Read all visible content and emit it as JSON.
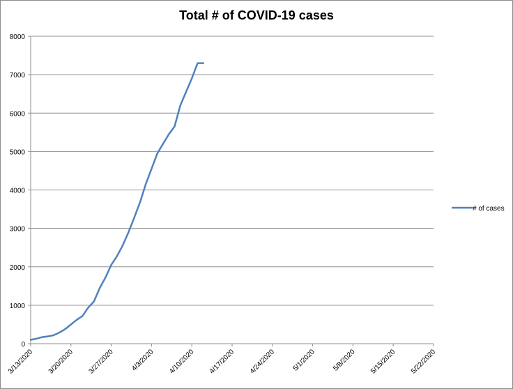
{
  "chart_data": {
    "type": "line",
    "title": "Total # of COVID-19 cases",
    "xlabel": "",
    "ylabel": "",
    "ylim": [
      0,
      8000
    ],
    "y_ticks": [
      0,
      1000,
      2000,
      3000,
      4000,
      5000,
      6000,
      7000,
      8000
    ],
    "x_ticks": [
      "3/13/2020",
      "3/20/2020",
      "3/27/2020",
      "4/3/2020",
      "4/10/2020",
      "4/17/2020",
      "4/24/2020",
      "5/1/2020",
      "5/8/2020",
      "5/15/2020",
      "5/22/2020"
    ],
    "xlim": [
      "3/13/2020",
      "5/22/2020"
    ],
    "grid": true,
    "legend_position": "right",
    "series": [
      {
        "name": "# of cases",
        "color": "#4f81bd",
        "x": [
          "3/13/2020",
          "3/14/2020",
          "3/15/2020",
          "3/16/2020",
          "3/17/2020",
          "3/18/2020",
          "3/19/2020",
          "3/20/2020",
          "3/21/2020",
          "3/22/2020",
          "3/23/2020",
          "3/24/2020",
          "3/25/2020",
          "3/26/2020",
          "3/27/2020",
          "3/28/2020",
          "3/29/2020",
          "3/30/2020",
          "3/31/2020",
          "4/1/2020",
          "4/2/2020",
          "4/3/2020",
          "4/4/2020",
          "4/5/2020",
          "4/6/2020",
          "4/7/2020",
          "4/8/2020",
          "4/9/2020",
          "4/10/2020",
          "4/11/2020",
          "4/12/2020"
        ],
        "values": [
          100,
          130,
          170,
          190,
          220,
          290,
          380,
          500,
          620,
          720,
          940,
          1100,
          1450,
          1720,
          2050,
          2280,
          2560,
          2900,
          3280,
          3680,
          4150,
          4550,
          4950,
          5200,
          5450,
          5650,
          6200,
          6550,
          6900,
          7300,
          7300
        ]
      }
    ]
  }
}
